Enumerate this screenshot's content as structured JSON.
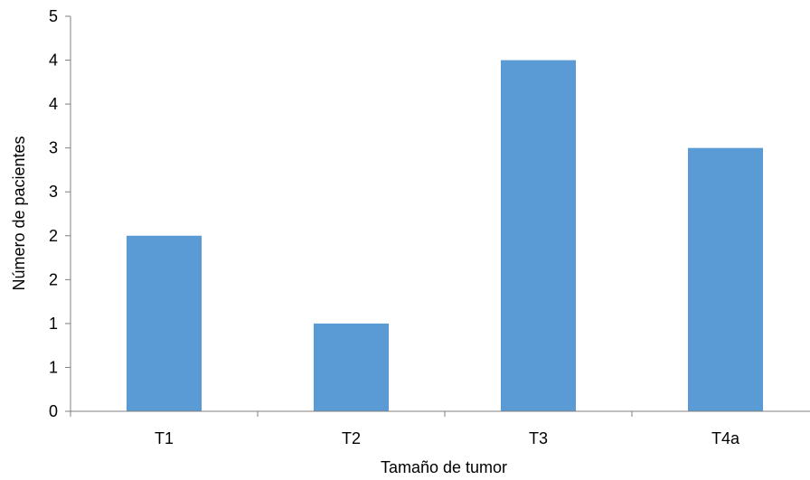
{
  "chart_data": {
    "type": "bar",
    "title": "",
    "xlabel": "Tamaño de tumor",
    "ylabel": "Número de pacientes",
    "categories": [
      "T1",
      "T2",
      "T3",
      "T4a"
    ],
    "values": [
      2,
      1,
      4,
      3
    ],
    "ylim": [
      0,
      4.5
    ],
    "y_tick_values": [
      0,
      0.5,
      1,
      1.5,
      2,
      2.5,
      3,
      3.5,
      4,
      4.5
    ],
    "y_tick_labels": [
      "0",
      "1",
      "1",
      "2",
      "2",
      "3",
      "3",
      "4",
      "4",
      "5"
    ],
    "grid": false,
    "legend": "none",
    "bar_color": "#5b9bd5",
    "axis_color": "#808080"
  }
}
